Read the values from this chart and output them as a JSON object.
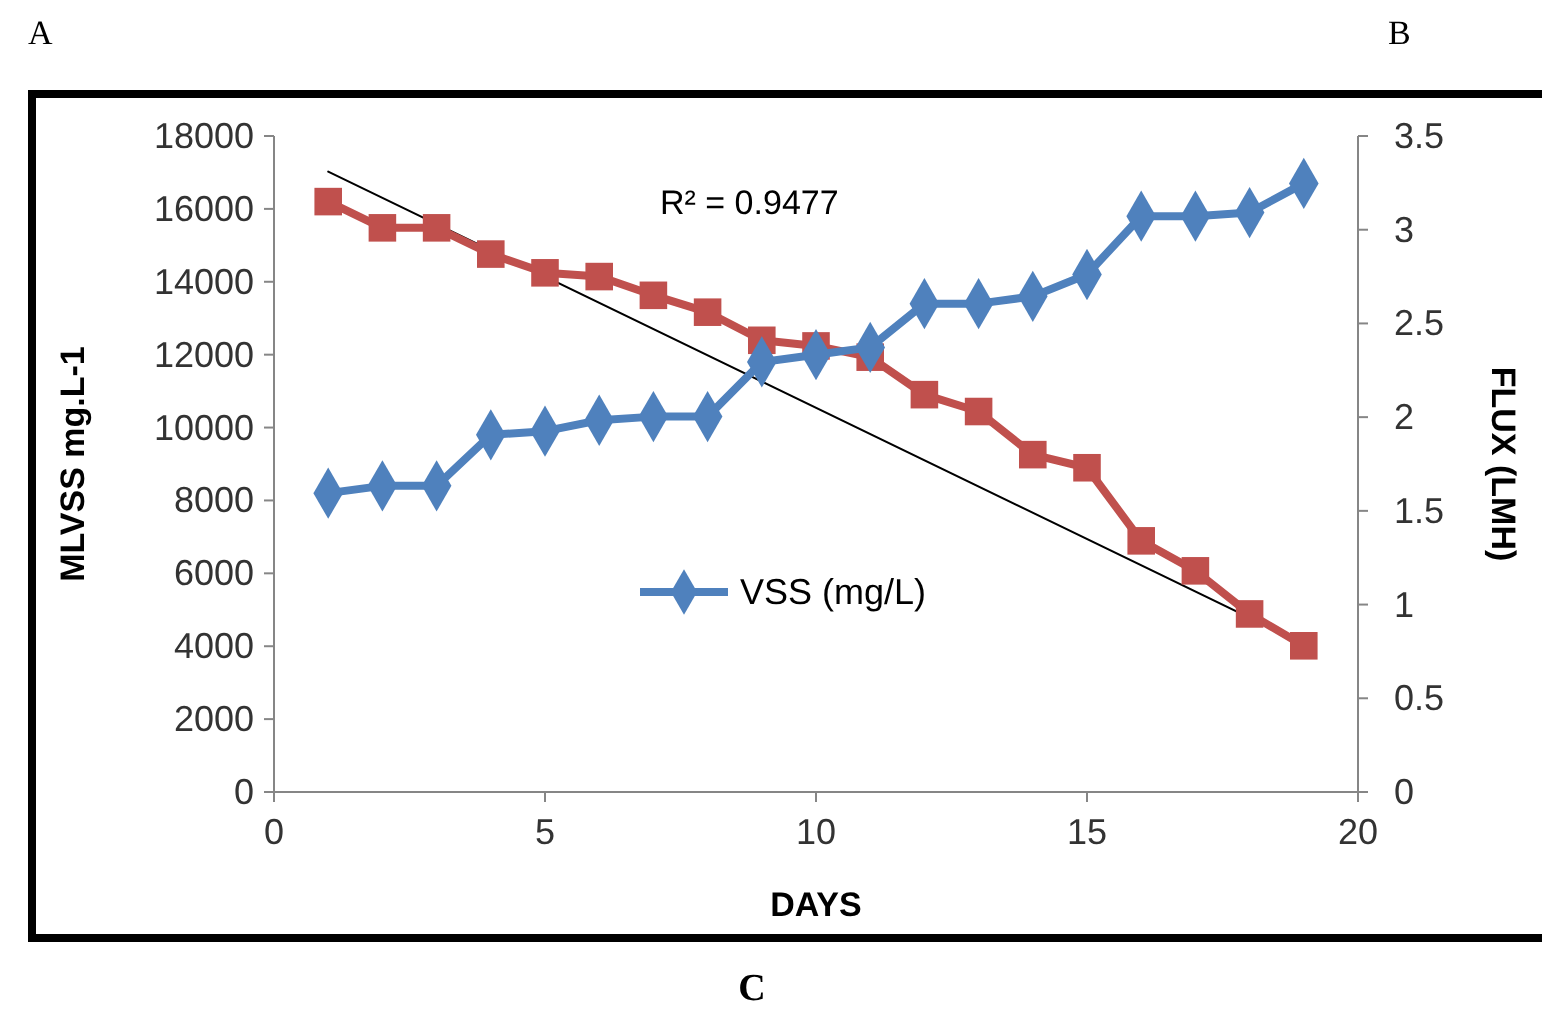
{
  "chart_data": {
    "type": "line",
    "xlabel": "DAYS",
    "ylabel": "MLVSS mg.L-1",
    "y2label": "FLUX (LMH)",
    "x": [
      1,
      2,
      3,
      4,
      5,
      6,
      7,
      8,
      9,
      10,
      11,
      12,
      13,
      14,
      15,
      16,
      17,
      18,
      19
    ],
    "xlim": [
      0,
      20
    ],
    "xticks": [
      0,
      5,
      10,
      15,
      20
    ],
    "ylim": [
      0,
      18000
    ],
    "yticks": [
      0,
      2000,
      4000,
      6000,
      8000,
      10000,
      12000,
      14000,
      16000,
      18000
    ],
    "y2lim": [
      0,
      3.5
    ],
    "y2ticks": [
      0,
      0.5,
      1,
      1.5,
      2,
      2.5,
      3,
      3.5
    ],
    "grid": false,
    "legend": "bottom",
    "series": [
      {
        "name": "VSS (mg/L)",
        "color": "#4f81bd",
        "marker": "diamond",
        "values": [
          8200,
          8400,
          8400,
          9800,
          9900,
          10200,
          10300,
          10300,
          11800,
          12000,
          12200,
          13400,
          13400,
          13600,
          14200,
          15800,
          15800,
          15900,
          16700
        ]
      },
      {
        "color": "#c0504d",
        "marker": "square",
        "axis": "y2",
        "values": [
          3.15,
          3.01,
          3.01,
          2.87,
          2.77,
          2.75,
          2.65,
          2.56,
          2.41,
          2.38,
          2.32,
          2.12,
          2.03,
          1.8,
          1.73,
          1.34,
          1.18,
          0.95,
          0.78
        ]
      },
      {
        "type": "line",
        "color": "#000000",
        "marker": "none",
        "axis": "y2",
        "x": [
          1,
          19
        ],
        "values": [
          3.31,
          0.79
        ]
      }
    ],
    "annotations": [
      "R² = 0.9477",
      "A",
      "B",
      "C"
    ]
  }
}
